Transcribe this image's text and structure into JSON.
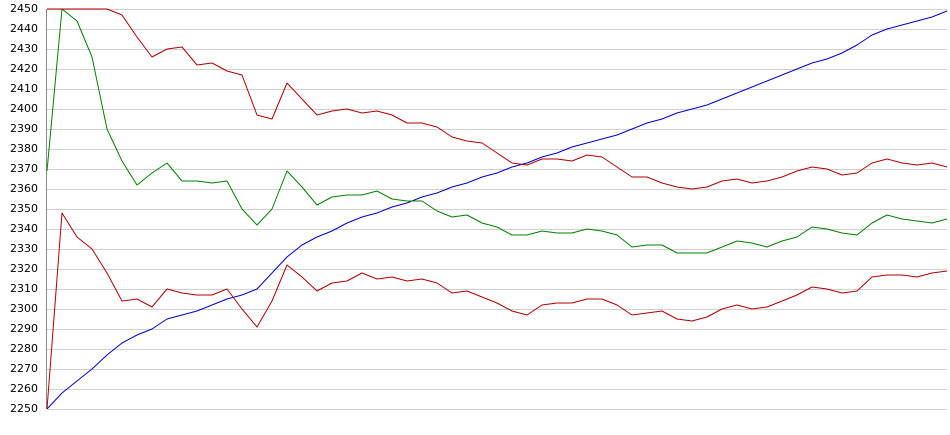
{
  "chart_data": {
    "type": "line",
    "ylim": [
      2250,
      2450
    ],
    "yticks": [
      2250,
      2260,
      2270,
      2280,
      2290,
      2300,
      2310,
      2320,
      2330,
      2340,
      2350,
      2360,
      2370,
      2380,
      2390,
      2400,
      2410,
      2420,
      2430,
      2440,
      2450
    ],
    "grid": true,
    "series": [
      {
        "color": "#0000cc",
        "values": [
          2250,
          2258,
          2264,
          2270,
          2277,
          2283,
          2287,
          2290,
          2295,
          2297,
          2299,
          2302,
          2305,
          2307,
          2310,
          2318,
          2326,
          2332,
          2336,
          2339,
          2343,
          2346,
          2348,
          2351,
          2353,
          2356,
          2358,
          2361,
          2363,
          2366,
          2368,
          2371,
          2373,
          2376,
          2378,
          2381,
          2383,
          2385,
          2387,
          2390,
          2393,
          2395,
          2398,
          2400,
          2402,
          2405,
          2408,
          2411,
          2414,
          2417,
          2420,
          2423,
          2425,
          2428,
          2432,
          2437,
          2440,
          2442,
          2444,
          2446,
          2449
        ]
      },
      {
        "color": "#008000",
        "values": [
          2369,
          2450,
          2444,
          2426,
          2390,
          2374,
          2362,
          2368,
          2373,
          2364,
          2364,
          2363,
          2364,
          2350,
          2342,
          2350,
          2369,
          2361,
          2352,
          2356,
          2357,
          2357,
          2359,
          2355,
          2354,
          2354,
          2349,
          2346,
          2347,
          2343,
          2341,
          2337,
          2337,
          2339,
          2338,
          2338,
          2340,
          2339,
          2337,
          2331,
          2332,
          2332,
          2328,
          2328,
          2328,
          2331,
          2334,
          2333,
          2331,
          2334,
          2336,
          2341,
          2340,
          2338,
          2337,
          2343,
          2347,
          2345,
          2344,
          2343,
          2345
        ]
      },
      {
        "color": "#b00000",
        "values": [
          2450,
          2450,
          2450,
          2450,
          2450,
          2447,
          2436,
          2426,
          2430,
          2431,
          2422,
          2423,
          2419,
          2417,
          2397,
          2395,
          2413,
          2405,
          2397,
          2399,
          2400,
          2398,
          2399,
          2397,
          2393,
          2393,
          2391,
          2386,
          2384,
          2383,
          2378,
          2373,
          2372,
          2375,
          2375,
          2374,
          2377,
          2376,
          2371,
          2366,
          2366,
          2363,
          2361,
          2360,
          2361,
          2364,
          2365,
          2363,
          2364,
          2366,
          2369,
          2371,
          2370,
          2367,
          2368,
          2373,
          2375,
          2373,
          2372,
          2373,
          2371
        ]
      },
      {
        "color": "#b00000",
        "values": [
          2250,
          2348,
          2336,
          2330,
          2318,
          2304,
          2305,
          2301,
          2310,
          2308,
          2307,
          2307,
          2310,
          2300,
          2291,
          2304,
          2322,
          2316,
          2309,
          2313,
          2314,
          2318,
          2315,
          2316,
          2314,
          2315,
          2313,
          2308,
          2309,
          2306,
          2303,
          2299,
          2297,
          2302,
          2303,
          2303,
          2305,
          2305,
          2302,
          2297,
          2298,
          2299,
          2295,
          2294,
          2296,
          2300,
          2302,
          2300,
          2301,
          2304,
          2307,
          2311,
          2310,
          2308,
          2309,
          2316,
          2317,
          2317,
          2316,
          2318,
          2319
        ]
      }
    ]
  }
}
